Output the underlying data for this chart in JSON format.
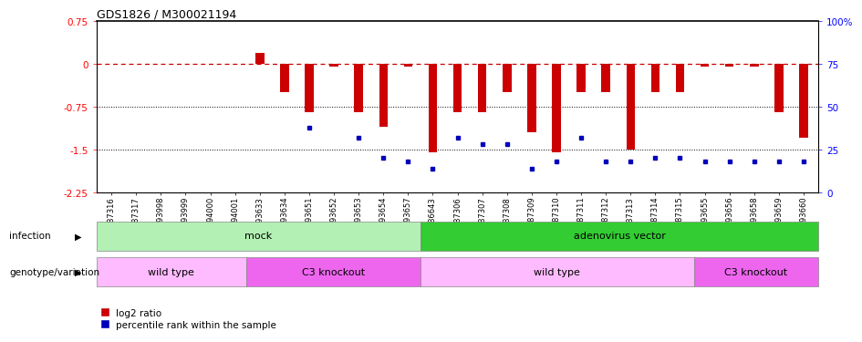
{
  "title": "GDS1826 / M300021194",
  "samples": [
    "GSM87316",
    "GSM87317",
    "GSM93998",
    "GSM93999",
    "GSM94000",
    "GSM94001",
    "GSM93633",
    "GSM93634",
    "GSM93651",
    "GSM93652",
    "GSM93653",
    "GSM93654",
    "GSM93657",
    "GSM86643",
    "GSM87306",
    "GSM87307",
    "GSM87308",
    "GSM87309",
    "GSM87310",
    "GSM87311",
    "GSM87312",
    "GSM87313",
    "GSM87314",
    "GSM87315",
    "GSM93655",
    "GSM93656",
    "GSM93658",
    "GSM93659",
    "GSM93660"
  ],
  "log2_ratio": [
    0.0,
    0.0,
    0.0,
    0.0,
    0.0,
    0.0,
    0.2,
    -0.5,
    -0.85,
    -0.05,
    -0.85,
    -1.1,
    -0.05,
    -1.55,
    -0.85,
    -0.85,
    -0.5,
    -1.2,
    -1.55,
    -0.5,
    -0.5,
    -1.5,
    -0.5,
    -0.5,
    -0.05,
    -0.05,
    -0.05,
    -0.85,
    -1.3
  ],
  "percentile_rank": [
    null,
    null,
    null,
    null,
    null,
    null,
    null,
    null,
    38,
    null,
    32,
    20,
    18,
    14,
    32,
    28,
    28,
    14,
    18,
    32,
    18,
    18,
    20,
    20,
    18,
    18,
    18,
    18,
    18
  ],
  "infection_groups": [
    {
      "label": "mock",
      "start": 0,
      "end": 13,
      "color": "#b3f0b3"
    },
    {
      "label": "adenovirus vector",
      "start": 13,
      "end": 29,
      "color": "#33cc33"
    }
  ],
  "genotype_groups": [
    {
      "label": "wild type",
      "start": 0,
      "end": 6,
      "color": "#ffbbff"
    },
    {
      "label": "C3 knockout",
      "start": 6,
      "end": 13,
      "color": "#ee66ee"
    },
    {
      "label": "wild type",
      "start": 13,
      "end": 24,
      "color": "#ffbbff"
    },
    {
      "label": "C3 knockout",
      "start": 24,
      "end": 29,
      "color": "#ee66ee"
    }
  ],
  "bar_color": "#cc0000",
  "dot_color": "#0000bb",
  "ylim_left": [
    -2.25,
    0.75
  ],
  "ylim_right": [
    0,
    100
  ],
  "hline_y": 0.0,
  "dotted_lines": [
    -0.75,
    -1.5
  ],
  "left_yticks": [
    0.75,
    0,
    -0.75,
    -1.5,
    -2.25
  ],
  "right_yticks": [
    100,
    75,
    50,
    25,
    0
  ],
  "bar_width": 0.35
}
